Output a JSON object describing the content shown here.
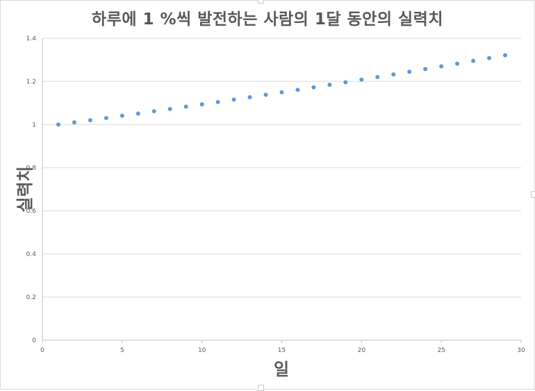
{
  "chart_data": {
    "type": "scatter",
    "title": "하루에 1 %씩 발전하는 사람의 1달 동안의 실력치",
    "xlabel": "일",
    "ylabel": "실력치",
    "xlim": [
      0,
      30
    ],
    "ylim": [
      0,
      1.4
    ],
    "xticks": [
      "0",
      "5",
      "10",
      "15",
      "20",
      "25",
      "30"
    ],
    "yticks": [
      "0",
      "0.2",
      "0.4",
      "0.6",
      "0.8",
      "1",
      "1.2",
      "1.4"
    ],
    "grid": "horizontal",
    "legend": "none",
    "marker_color": "#5b9bd5",
    "x": [
      1,
      2,
      3,
      4,
      5,
      6,
      7,
      8,
      9,
      10,
      11,
      12,
      13,
      14,
      15,
      16,
      17,
      18,
      19,
      20,
      21,
      22,
      23,
      24,
      25,
      26,
      27,
      28,
      29
    ],
    "y": [
      1.0,
      1.01,
      1.0201,
      1.0303,
      1.0406,
      1.051,
      1.0615,
      1.0721,
      1.0829,
      1.0937,
      1.1046,
      1.1157,
      1.1268,
      1.1381,
      1.1495,
      1.161,
      1.1726,
      1.1843,
      1.1961,
      1.2081,
      1.2202,
      1.2324,
      1.2447,
      1.2572,
      1.2697,
      1.2824,
      1.2953,
      1.3082,
      1.3213
    ]
  }
}
